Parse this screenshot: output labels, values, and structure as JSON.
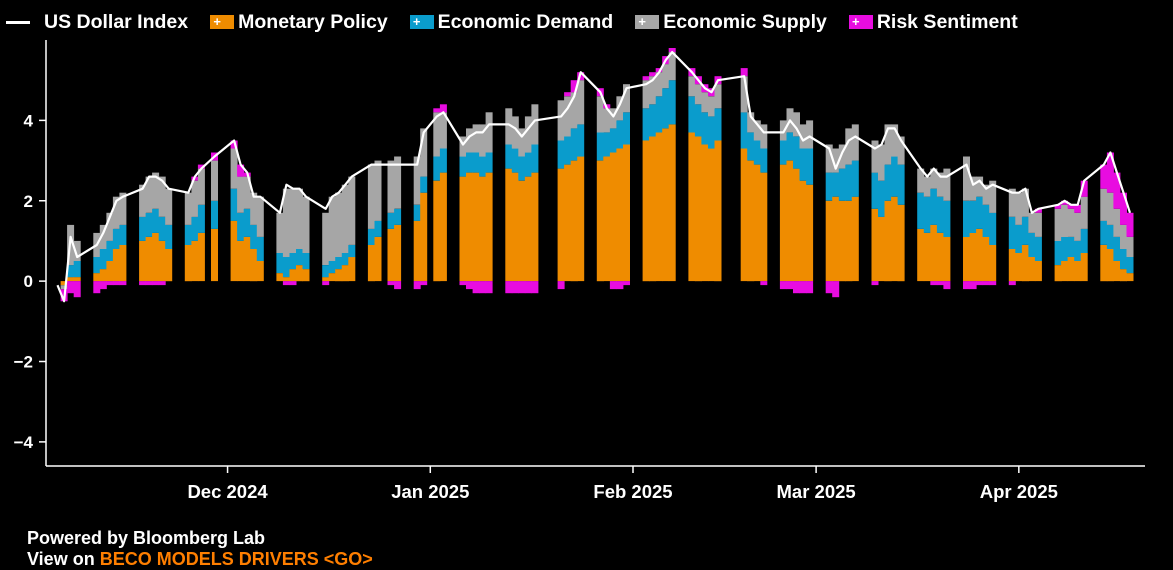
{
  "legend": {
    "index_label": "US Dollar Index",
    "items": [
      {
        "name": "Monetary Policy",
        "color": "#ef8c00"
      },
      {
        "name": "Economic Demand",
        "color": "#0a9ccc"
      },
      {
        "name": "Economic Supply",
        "color": "#a6a6a6"
      },
      {
        "name": "Risk Sentiment",
        "color": "#e80ce0"
      }
    ]
  },
  "footer": {
    "powered_by": "Powered by Bloomberg Lab",
    "view_prefix": "View on",
    "command": "BECO MODELS DRIVERS <GO>"
  },
  "chart_data": {
    "type": "bar",
    "stacked": true,
    "x_tick_labels": [
      {
        "date": "2024-12-01",
        "label": "Dec 2024"
      },
      {
        "date": "2025-01-01",
        "label": "Jan 2025"
      },
      {
        "date": "2025-02-01",
        "label": "Feb 2025"
      },
      {
        "date": "2025-03-01",
        "label": "Mar 2025"
      },
      {
        "date": "2025-04-01",
        "label": "Apr 2025"
      }
    ],
    "x_range": [
      "2024-11-04",
      "2025-04-18"
    ],
    "ylim": [
      -4.6,
      6.0
    ],
    "y_ticks": [
      -4,
      -2,
      0,
      2,
      4
    ],
    "grid": false,
    "legend_position": "top",
    "line_series": "US Dollar Index",
    "bar_series": [
      {
        "name": "Monetary Policy",
        "color": "#ef8c00"
      },
      {
        "name": "Economic Demand",
        "color": "#0a9ccc"
      },
      {
        "name": "Economic Supply",
        "color": "#a6a6a6"
      },
      {
        "name": "Risk Sentiment",
        "color": "#e80ce0"
      }
    ],
    "points": [
      {
        "date": "2024-11-05",
        "mp": 0.0,
        "ed": 0.0,
        "es": 0.0,
        "rs": 0.0,
        "usd": -0.1
      },
      {
        "date": "2024-11-06",
        "mp": -0.1,
        "ed": 0.0,
        "es": -0.1,
        "rs": -0.3,
        "usd": -0.5
      },
      {
        "date": "2024-11-07",
        "mp": 0.1,
        "ed": 0.3,
        "es": 1.0,
        "rs": -0.3,
        "usd": 1.1
      },
      {
        "date": "2024-11-08",
        "mp": 0.1,
        "ed": 0.4,
        "es": 0.5,
        "rs": -0.4,
        "usd": 0.6
      },
      {
        "date": "2024-11-11",
        "mp": 0.2,
        "ed": 0.4,
        "es": 0.6,
        "rs": -0.3,
        "usd": 0.9
      },
      {
        "date": "2024-11-12",
        "mp": 0.3,
        "ed": 0.5,
        "es": 0.6,
        "rs": -0.2,
        "usd": 1.2
      },
      {
        "date": "2024-11-13",
        "mp": 0.5,
        "ed": 0.5,
        "es": 0.7,
        "rs": -0.1,
        "usd": 1.6
      },
      {
        "date": "2024-11-14",
        "mp": 0.8,
        "ed": 0.5,
        "es": 0.8,
        "rs": -0.1,
        "usd": 2.0
      },
      {
        "date": "2024-11-15",
        "mp": 0.9,
        "ed": 0.5,
        "es": 0.8,
        "rs": -0.1,
        "usd": 2.1
      },
      {
        "date": "2024-11-18",
        "mp": 1.0,
        "ed": 0.6,
        "es": 0.8,
        "rs": -0.1,
        "usd": 2.3
      },
      {
        "date": "2024-11-19",
        "mp": 1.1,
        "ed": 0.6,
        "es": 0.9,
        "rs": -0.1,
        "usd": 2.6
      },
      {
        "date": "2024-11-20",
        "mp": 1.2,
        "ed": 0.6,
        "es": 0.9,
        "rs": -0.1,
        "usd": 2.6
      },
      {
        "date": "2024-11-21",
        "mp": 1.0,
        "ed": 0.6,
        "es": 1.0,
        "rs": -0.1,
        "usd": 2.5
      },
      {
        "date": "2024-11-22",
        "mp": 0.8,
        "ed": 0.6,
        "es": 0.9,
        "rs": 0.0,
        "usd": 2.3
      },
      {
        "date": "2024-11-25",
        "mp": 0.9,
        "ed": 0.5,
        "es": 0.8,
        "rs": 0.0,
        "usd": 2.2
      },
      {
        "date": "2024-11-26",
        "mp": 1.0,
        "ed": 0.6,
        "es": 0.9,
        "rs": 0.1,
        "usd": 2.6
      },
      {
        "date": "2024-11-27",
        "mp": 1.2,
        "ed": 0.7,
        "es": 0.9,
        "rs": 0.1,
        "usd": 2.8
      },
      {
        "date": "2024-11-29",
        "mp": 1.3,
        "ed": 0.7,
        "es": 1.0,
        "rs": 0.2,
        "usd": 3.1
      },
      {
        "date": "2024-12-02",
        "mp": 1.5,
        "ed": 0.8,
        "es": 1.0,
        "rs": 0.2,
        "usd": 3.5
      },
      {
        "date": "2024-12-03",
        "mp": 1.0,
        "ed": 0.7,
        "es": 0.9,
        "rs": 0.3,
        "usd": 2.9
      },
      {
        "date": "2024-12-04",
        "mp": 1.1,
        "ed": 0.7,
        "es": 0.8,
        "rs": 0.1,
        "usd": 2.7
      },
      {
        "date": "2024-12-05",
        "mp": 0.8,
        "ed": 0.6,
        "es": 0.8,
        "rs": 0.0,
        "usd": 2.1
      },
      {
        "date": "2024-12-06",
        "mp": 0.5,
        "ed": 0.6,
        "es": 1.0,
        "rs": 0.0,
        "usd": 2.1
      },
      {
        "date": "2024-12-09",
        "mp": 0.2,
        "ed": 0.5,
        "es": 1.0,
        "rs": 0.0,
        "usd": 1.7
      },
      {
        "date": "2024-12-10",
        "mp": 0.1,
        "ed": 0.5,
        "es": 1.7,
        "rs": -0.1,
        "usd": 2.4
      },
      {
        "date": "2024-12-11",
        "mp": 0.3,
        "ed": 0.4,
        "es": 1.6,
        "rs": -0.1,
        "usd": 2.3
      },
      {
        "date": "2024-12-12",
        "mp": 0.4,
        "ed": 0.4,
        "es": 1.5,
        "rs": 0.0,
        "usd": 2.3
      },
      {
        "date": "2024-12-13",
        "mp": 0.3,
        "ed": 0.4,
        "es": 1.4,
        "rs": 0.0,
        "usd": 2.1
      },
      {
        "date": "2024-12-16",
        "mp": 0.1,
        "ed": 0.3,
        "es": 1.3,
        "rs": -0.1,
        "usd": 1.8
      },
      {
        "date": "2024-12-17",
        "mp": 0.2,
        "ed": 0.3,
        "es": 1.6,
        "rs": 0.0,
        "usd": 2.1
      },
      {
        "date": "2024-12-18",
        "mp": 0.3,
        "ed": 0.3,
        "es": 1.6,
        "rs": 0.0,
        "usd": 2.2
      },
      {
        "date": "2024-12-19",
        "mp": 0.4,
        "ed": 0.3,
        "es": 1.7,
        "rs": 0.0,
        "usd": 2.4
      },
      {
        "date": "2024-12-20",
        "mp": 0.6,
        "ed": 0.3,
        "es": 1.7,
        "rs": 0.0,
        "usd": 2.6
      },
      {
        "date": "2024-12-23",
        "mp": 0.9,
        "ed": 0.4,
        "es": 1.6,
        "rs": 0.0,
        "usd": 2.9
      },
      {
        "date": "2024-12-24",
        "mp": 1.1,
        "ed": 0.4,
        "es": 1.5,
        "rs": 0.0,
        "usd": 2.9
      },
      {
        "date": "2024-12-26",
        "mp": 1.3,
        "ed": 0.4,
        "es": 1.3,
        "rs": -0.1,
        "usd": 2.9
      },
      {
        "date": "2024-12-27",
        "mp": 1.4,
        "ed": 0.4,
        "es": 1.3,
        "rs": -0.2,
        "usd": 2.9
      },
      {
        "date": "2024-12-30",
        "mp": 1.5,
        "ed": 0.4,
        "es": 1.2,
        "rs": -0.2,
        "usd": 2.9
      },
      {
        "date": "2024-12-31",
        "mp": 2.2,
        "ed": 0.4,
        "es": 1.2,
        "rs": -0.1,
        "usd": 3.7
      },
      {
        "date": "2025-01-02",
        "mp": 2.5,
        "ed": 0.6,
        "es": 1.1,
        "rs": 0.1,
        "usd": 4.1
      },
      {
        "date": "2025-01-03",
        "mp": 2.7,
        "ed": 0.6,
        "es": 0.9,
        "rs": 0.2,
        "usd": 4.2
      },
      {
        "date": "2025-01-06",
        "mp": 2.6,
        "ed": 0.5,
        "es": 0.5,
        "rs": -0.1,
        "usd": 3.4
      },
      {
        "date": "2025-01-07",
        "mp": 2.7,
        "ed": 0.5,
        "es": 0.6,
        "rs": -0.2,
        "usd": 3.6
      },
      {
        "date": "2025-01-08",
        "mp": 2.7,
        "ed": 0.5,
        "es": 0.7,
        "rs": -0.3,
        "usd": 3.7
      },
      {
        "date": "2025-01-09",
        "mp": 2.6,
        "ed": 0.5,
        "es": 0.8,
        "rs": -0.3,
        "usd": 3.7
      },
      {
        "date": "2025-01-10",
        "mp": 2.7,
        "ed": 0.5,
        "es": 1.0,
        "rs": -0.3,
        "usd": 3.9
      },
      {
        "date": "2025-01-13",
        "mp": 2.8,
        "ed": 0.6,
        "es": 0.9,
        "rs": -0.3,
        "usd": 3.9
      },
      {
        "date": "2025-01-14",
        "mp": 2.7,
        "ed": 0.6,
        "es": 0.8,
        "rs": -0.3,
        "usd": 3.8
      },
      {
        "date": "2025-01-15",
        "mp": 2.5,
        "ed": 0.6,
        "es": 0.7,
        "rs": -0.3,
        "usd": 3.6
      },
      {
        "date": "2025-01-16",
        "mp": 2.6,
        "ed": 0.6,
        "es": 0.9,
        "rs": -0.3,
        "usd": 3.8
      },
      {
        "date": "2025-01-17",
        "mp": 2.7,
        "ed": 0.7,
        "es": 1.0,
        "rs": -0.3,
        "usd": 4.0
      },
      {
        "date": "2025-01-21",
        "mp": 2.8,
        "ed": 0.7,
        "es": 1.0,
        "rs": -0.2,
        "usd": 4.1
      },
      {
        "date": "2025-01-22",
        "mp": 2.9,
        "ed": 0.7,
        "es": 1.0,
        "rs": 0.1,
        "usd": 4.3
      },
      {
        "date": "2025-01-23",
        "mp": 3.0,
        "ed": 0.8,
        "es": 0.9,
        "rs": 0.3,
        "usd": 4.6
      },
      {
        "date": "2025-01-24",
        "mp": 3.1,
        "ed": 0.8,
        "es": 1.1,
        "rs": 0.2,
        "usd": 5.2
      },
      {
        "date": "2025-01-27",
        "mp": 3.0,
        "ed": 0.7,
        "es": 0.9,
        "rs": 0.2,
        "usd": 4.7
      },
      {
        "date": "2025-01-28",
        "mp": 3.1,
        "ed": 0.6,
        "es": 0.6,
        "rs": 0.1,
        "usd": 4.3
      },
      {
        "date": "2025-01-29",
        "mp": 3.2,
        "ed": 0.6,
        "es": 0.5,
        "rs": -0.2,
        "usd": 4.1
      },
      {
        "date": "2025-01-30",
        "mp": 3.3,
        "ed": 0.7,
        "es": 0.6,
        "rs": -0.2,
        "usd": 4.4
      },
      {
        "date": "2025-01-31",
        "mp": 3.4,
        "ed": 0.8,
        "es": 0.7,
        "rs": -0.1,
        "usd": 4.8
      },
      {
        "date": "2025-02-03",
        "mp": 3.5,
        "ed": 0.8,
        "es": 0.7,
        "rs": 0.1,
        "usd": 4.9
      },
      {
        "date": "2025-02-04",
        "mp": 3.6,
        "ed": 0.8,
        "es": 0.7,
        "rs": 0.1,
        "usd": 5.0
      },
      {
        "date": "2025-02-05",
        "mp": 3.7,
        "ed": 0.9,
        "es": 0.6,
        "rs": 0.1,
        "usd": 5.2
      },
      {
        "date": "2025-02-06",
        "mp": 3.8,
        "ed": 1.0,
        "es": 0.6,
        "rs": 0.2,
        "usd": 5.5
      },
      {
        "date": "2025-02-07",
        "mp": 3.9,
        "ed": 1.1,
        "es": 0.7,
        "rs": 0.1,
        "usd": 5.7
      },
      {
        "date": "2025-02-10",
        "mp": 3.7,
        "ed": 0.9,
        "es": 0.5,
        "rs": 0.2,
        "usd": 5.2
      },
      {
        "date": "2025-02-11",
        "mp": 3.6,
        "ed": 0.8,
        "es": 0.5,
        "rs": 0.2,
        "usd": 5.0
      },
      {
        "date": "2025-02-12",
        "mp": 3.4,
        "ed": 0.8,
        "es": 0.5,
        "rs": 0.2,
        "usd": 4.8
      },
      {
        "date": "2025-02-13",
        "mp": 3.3,
        "ed": 0.8,
        "es": 0.5,
        "rs": 0.2,
        "usd": 4.7
      },
      {
        "date": "2025-02-14",
        "mp": 3.5,
        "ed": 0.8,
        "es": 0.6,
        "rs": 0.2,
        "usd": 5.0
      },
      {
        "date": "2025-02-18",
        "mp": 3.3,
        "ed": 0.9,
        "es": 0.9,
        "rs": 0.2,
        "usd": 5.1
      },
      {
        "date": "2025-02-19",
        "mp": 3.0,
        "ed": 0.7,
        "es": 0.5,
        "rs": 0.0,
        "usd": 4.1
      },
      {
        "date": "2025-02-20",
        "mp": 2.9,
        "ed": 0.6,
        "es": 0.5,
        "rs": 0.0,
        "usd": 3.9
      },
      {
        "date": "2025-02-21",
        "mp": 2.7,
        "ed": 0.6,
        "es": 0.6,
        "rs": -0.1,
        "usd": 3.7
      },
      {
        "date": "2025-02-24",
        "mp": 2.9,
        "ed": 0.6,
        "es": 0.5,
        "rs": -0.2,
        "usd": 3.7
      },
      {
        "date": "2025-02-25",
        "mp": 3.0,
        "ed": 0.7,
        "es": 0.6,
        "rs": -0.2,
        "usd": 4.0
      },
      {
        "date": "2025-02-26",
        "mp": 2.8,
        "ed": 0.8,
        "es": 0.6,
        "rs": -0.3,
        "usd": 3.8
      },
      {
        "date": "2025-02-27",
        "mp": 2.5,
        "ed": 0.8,
        "es": 0.6,
        "rs": -0.3,
        "usd": 3.5
      },
      {
        "date": "2025-02-28",
        "mp": 2.4,
        "ed": 0.9,
        "es": 0.7,
        "rs": -0.3,
        "usd": 3.6
      },
      {
        "date": "2025-03-03",
        "mp": 2.0,
        "ed": 0.7,
        "es": 0.7,
        "rs": -0.3,
        "usd": 3.3
      },
      {
        "date": "2025-03-04",
        "mp": 2.1,
        "ed": 0.6,
        "es": 0.6,
        "rs": -0.4,
        "usd": 2.8
      },
      {
        "date": "2025-03-05",
        "mp": 2.0,
        "ed": 0.8,
        "es": 0.6,
        "rs": 0.0,
        "usd": 3.2
      },
      {
        "date": "2025-03-06",
        "mp": 2.0,
        "ed": 0.9,
        "es": 0.9,
        "rs": 0.0,
        "usd": 3.5
      },
      {
        "date": "2025-03-07",
        "mp": 2.1,
        "ed": 0.9,
        "es": 0.9,
        "rs": 0.0,
        "usd": 3.6
      },
      {
        "date": "2025-03-10",
        "mp": 1.8,
        "ed": 0.9,
        "es": 0.8,
        "rs": -0.1,
        "usd": 3.3
      },
      {
        "date": "2025-03-11",
        "mp": 1.6,
        "ed": 0.9,
        "es": 0.9,
        "rs": 0.0,
        "usd": 3.4
      },
      {
        "date": "2025-03-12",
        "mp": 2.0,
        "ed": 0.9,
        "es": 1.0,
        "rs": 0.0,
        "usd": 3.8
      },
      {
        "date": "2025-03-13",
        "mp": 2.1,
        "ed": 1.0,
        "es": 0.8,
        "rs": 0.0,
        "usd": 3.8
      },
      {
        "date": "2025-03-14",
        "mp": 1.9,
        "ed": 1.0,
        "es": 0.7,
        "rs": 0.0,
        "usd": 3.5
      },
      {
        "date": "2025-03-17",
        "mp": 1.3,
        "ed": 0.9,
        "es": 0.6,
        "rs": 0.0,
        "usd": 2.8
      },
      {
        "date": "2025-03-18",
        "mp": 1.2,
        "ed": 0.9,
        "es": 0.5,
        "rs": 0.0,
        "usd": 2.6
      },
      {
        "date": "2025-03-19",
        "mp": 1.4,
        "ed": 0.9,
        "es": 0.5,
        "rs": -0.1,
        "usd": 2.8
      },
      {
        "date": "2025-03-20",
        "mp": 1.2,
        "ed": 0.9,
        "es": 0.6,
        "rs": -0.1,
        "usd": 2.6
      },
      {
        "date": "2025-03-21",
        "mp": 1.1,
        "ed": 0.9,
        "es": 0.8,
        "rs": -0.2,
        "usd": 2.6
      },
      {
        "date": "2025-03-24",
        "mp": 1.1,
        "ed": 0.9,
        "es": 1.1,
        "rs": -0.2,
        "usd": 2.9
      },
      {
        "date": "2025-03-25",
        "mp": 1.2,
        "ed": 0.8,
        "es": 0.6,
        "rs": -0.2,
        "usd": 2.4
      },
      {
        "date": "2025-03-26",
        "mp": 1.3,
        "ed": 0.8,
        "es": 0.5,
        "rs": -0.1,
        "usd": 2.5
      },
      {
        "date": "2025-03-27",
        "mp": 1.1,
        "ed": 0.8,
        "es": 0.5,
        "rs": -0.1,
        "usd": 2.3
      },
      {
        "date": "2025-03-28",
        "mp": 0.9,
        "ed": 0.8,
        "es": 0.8,
        "rs": -0.1,
        "usd": 2.4
      },
      {
        "date": "2025-03-31",
        "mp": 0.8,
        "ed": 0.8,
        "es": 0.7,
        "rs": -0.1,
        "usd": 2.2
      },
      {
        "date": "2025-04-01",
        "mp": 0.7,
        "ed": 0.7,
        "es": 0.8,
        "rs": 0.0,
        "usd": 2.2
      },
      {
        "date": "2025-04-02",
        "mp": 0.9,
        "ed": 0.7,
        "es": 0.7,
        "rs": 0.0,
        "usd": 2.3
      },
      {
        "date": "2025-04-03",
        "mp": 0.6,
        "ed": 0.6,
        "es": 0.5,
        "rs": 0.0,
        "usd": 1.7
      },
      {
        "date": "2025-04-04",
        "mp": 0.5,
        "ed": 0.6,
        "es": 0.6,
        "rs": 0.1,
        "usd": 1.8
      },
      {
        "date": "2025-04-07",
        "mp": 0.4,
        "ed": 0.6,
        "es": 0.8,
        "rs": 0.1,
        "usd": 1.9
      },
      {
        "date": "2025-04-08",
        "mp": 0.5,
        "ed": 0.6,
        "es": 0.8,
        "rs": 0.1,
        "usd": 2.0
      },
      {
        "date": "2025-04-09",
        "mp": 0.6,
        "ed": 0.5,
        "es": 0.7,
        "rs": 0.1,
        "usd": 1.9
      },
      {
        "date": "2025-04-10",
        "mp": 0.5,
        "ed": 0.5,
        "es": 0.7,
        "rs": 0.2,
        "usd": 1.9
      },
      {
        "date": "2025-04-11",
        "mp": 0.7,
        "ed": 0.6,
        "es": 0.8,
        "rs": 0.4,
        "usd": 2.5
      },
      {
        "date": "2025-04-14",
        "mp": 0.9,
        "ed": 0.6,
        "es": 0.8,
        "rs": 0.6,
        "usd": 2.9
      },
      {
        "date": "2025-04-15",
        "mp": 0.8,
        "ed": 0.6,
        "es": 0.8,
        "rs": 1.0,
        "usd": 3.2
      },
      {
        "date": "2025-04-16",
        "mp": 0.5,
        "ed": 0.6,
        "es": 0.7,
        "rs": 0.9,
        "usd": 2.7
      },
      {
        "date": "2025-04-17",
        "mp": 0.3,
        "ed": 0.5,
        "es": 0.6,
        "rs": 0.8,
        "usd": 2.2
      },
      {
        "date": "2025-04-18",
        "mp": 0.2,
        "ed": 0.4,
        "es": 0.5,
        "rs": 0.6,
        "usd": 1.7
      }
    ]
  }
}
